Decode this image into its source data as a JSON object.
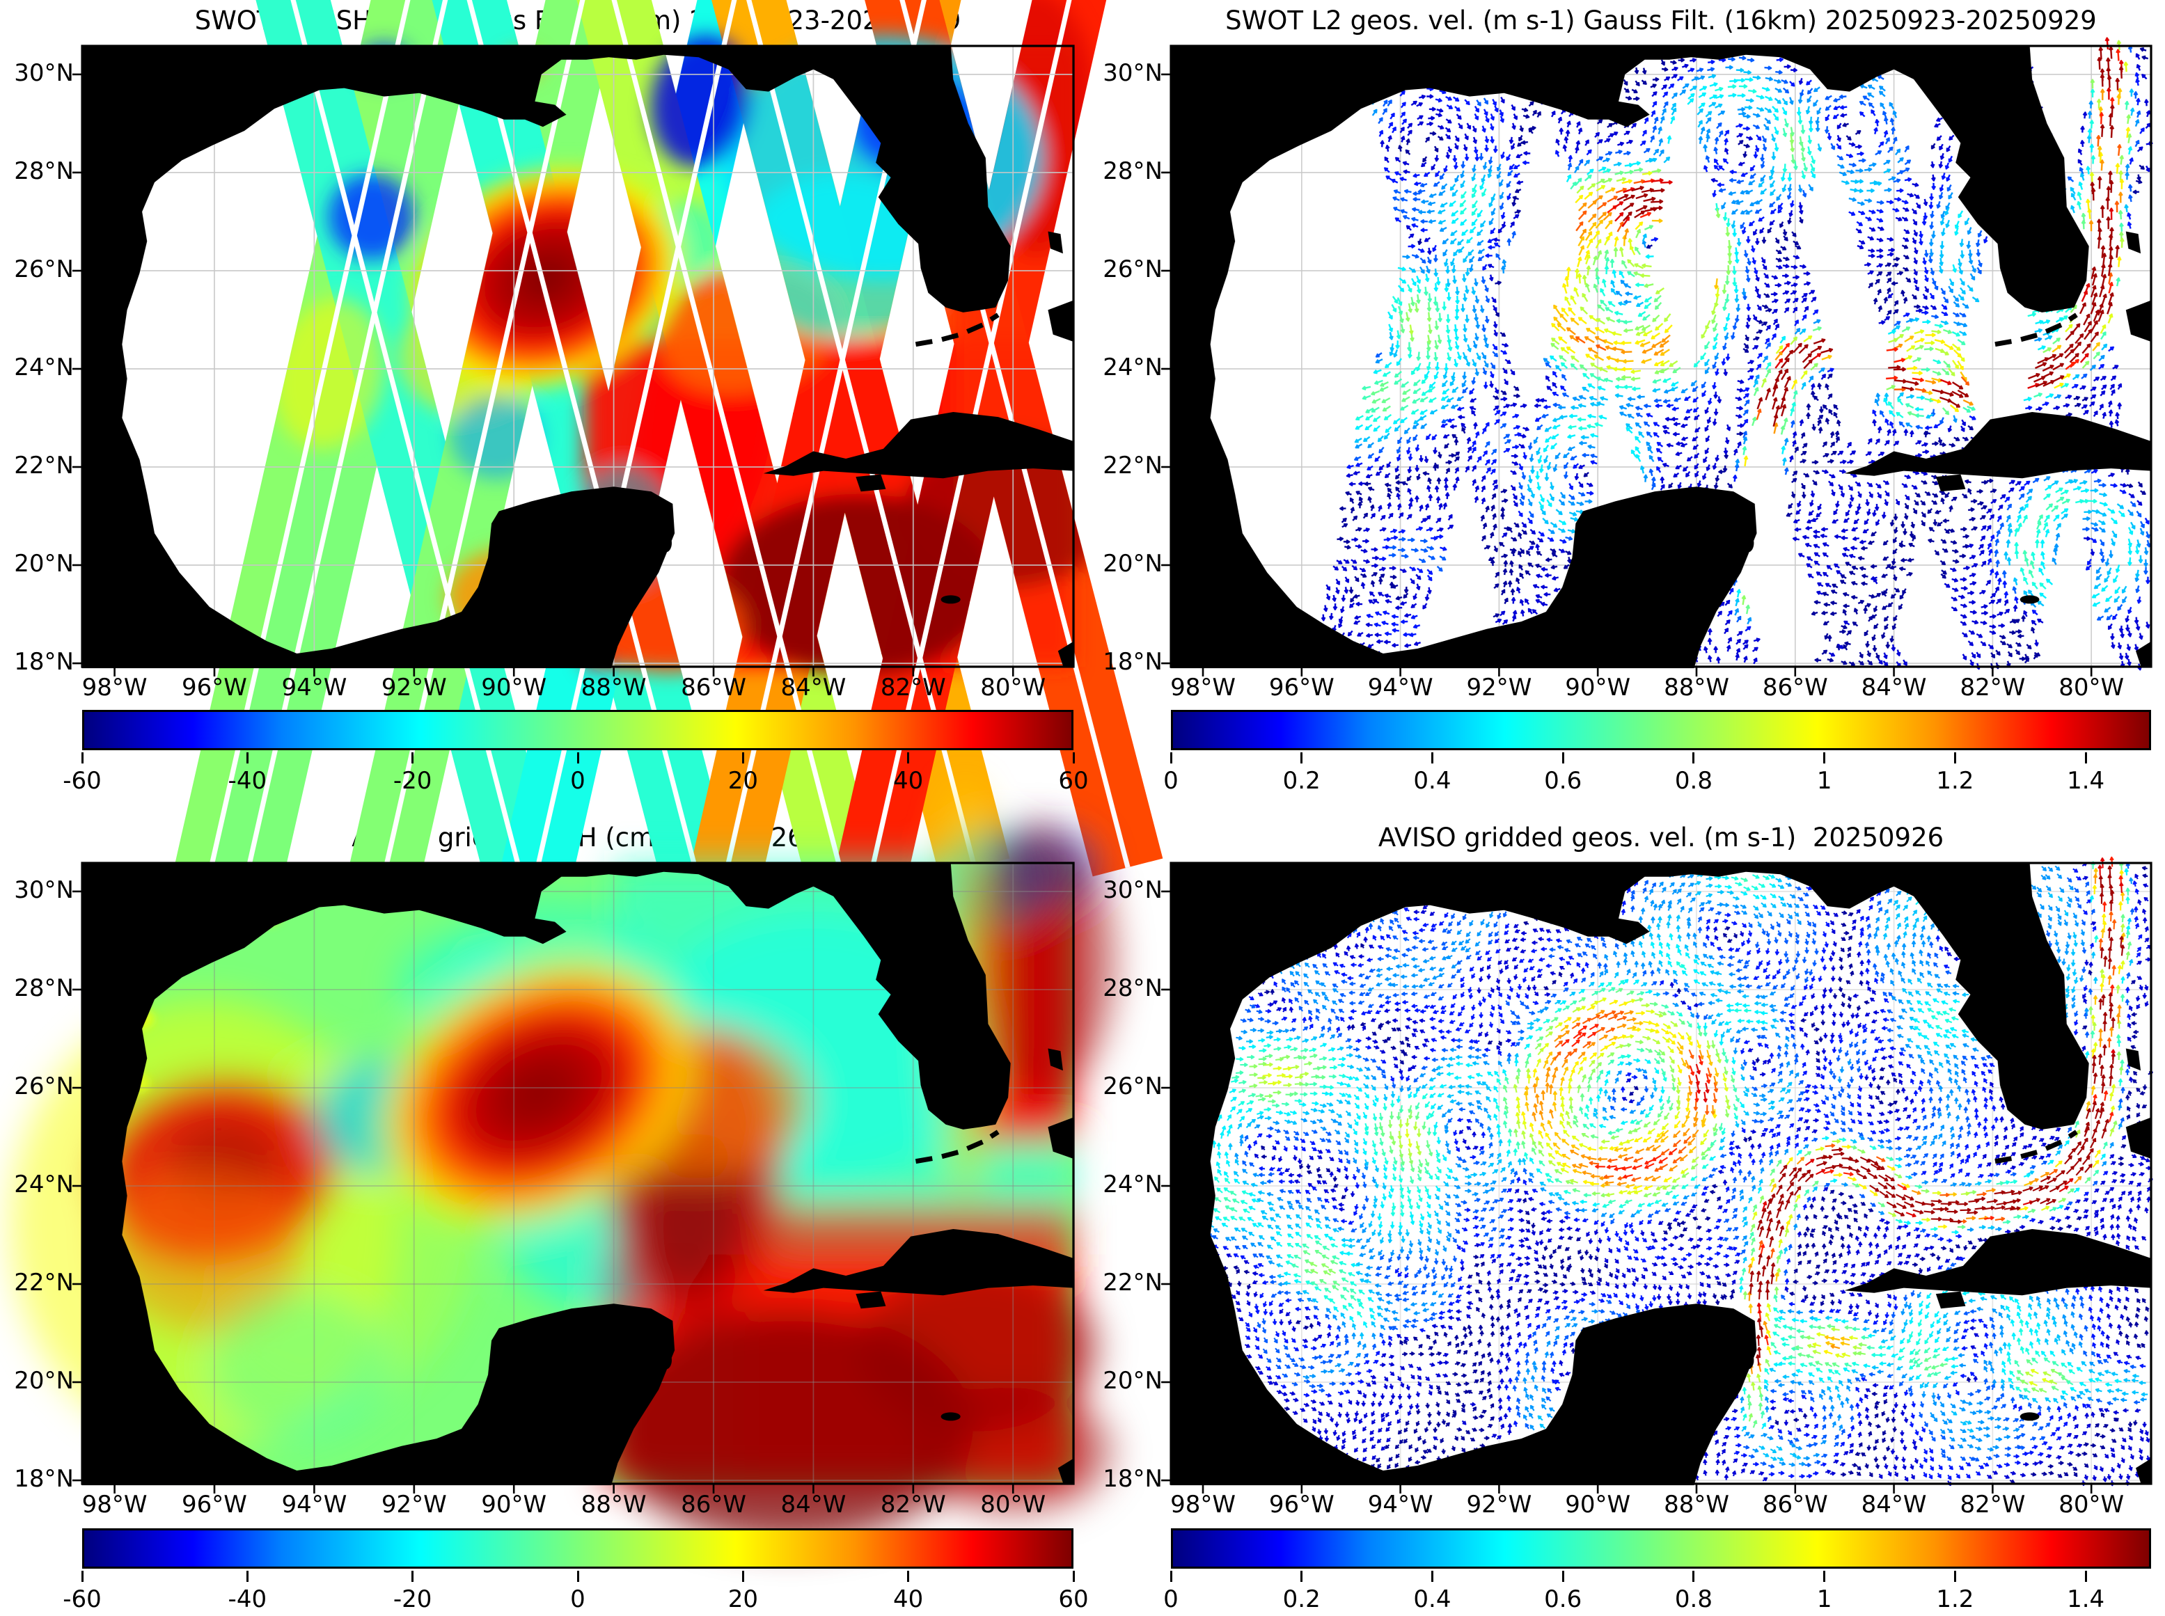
{
  "figure": {
    "panels": [
      {
        "id": "swot-ssh",
        "title": "SWOT L2 SSH (cm) Gauss Filt. (16km) 20250923-20250929"
      },
      {
        "id": "swot-vel",
        "title": "SWOT L2 geos. vel. (m s-1) Gauss Filt. (16km) 20250923-20250929"
      },
      {
        "id": "aviso-ssh",
        "title": "AVISO gridded SSH (cm) 20250926"
      },
      {
        "id": "aviso-vel",
        "title": "AVISO gridded geos. vel. (m s-1)  20250926"
      }
    ]
  },
  "axes": {
    "lat_tick_labels": [
      "30°N",
      "28°N",
      "26°N",
      "24°N",
      "22°N",
      "20°N",
      "18°N"
    ],
    "lat_tick_values": [
      30,
      28,
      26,
      24,
      22,
      20,
      18
    ],
    "lon_tick_labels": [
      "98°W",
      "96°W",
      "94°W",
      "92°W",
      "90°W",
      "88°W",
      "86°W",
      "84°W",
      "82°W",
      "80°W"
    ],
    "lon_tick_values": [
      -98,
      -96,
      -94,
      -92,
      -90,
      -88,
      -86,
      -84,
      -82,
      -80
    ],
    "lon_range": [
      -98.65,
      -78.79
    ],
    "lat_range": [
      17.93,
      30.58
    ]
  },
  "colorbars": {
    "ssh": {
      "tick_labels": [
        "-60",
        "-40",
        "-20",
        "0",
        "20",
        "40",
        "60"
      ],
      "tick_values": [
        -60,
        -40,
        -20,
        0,
        20,
        40,
        60
      ],
      "min": -60,
      "max": 60,
      "units": "cm"
    },
    "vel": {
      "tick_labels": [
        "0",
        "0.2",
        "0.4",
        "0.6",
        "0.8",
        "1",
        "1.2",
        "1.4"
      ],
      "tick_values": [
        0,
        0.2,
        0.4,
        0.6,
        0.8,
        1,
        1.2,
        1.4
      ],
      "min": 0,
      "max": 1.5,
      "units": "m s-1"
    }
  },
  "colors": {
    "land": "#000000",
    "ocean_nodata": "#ffffff",
    "grid": "#c7c7c7",
    "jet_stops": [
      [
        0,
        "#00007F"
      ],
      [
        0.11,
        "#0000FF"
      ],
      [
        0.2,
        "#0080FF"
      ],
      [
        0.34,
        "#00FFFF"
      ],
      [
        0.5,
        "#7CFF79"
      ],
      [
        0.66,
        "#FFFF00"
      ],
      [
        0.78,
        "#FF9400"
      ],
      [
        0.9,
        "#FF0000"
      ],
      [
        1,
        "#7F0000"
      ]
    ]
  },
  "chart_data": [
    {
      "panel": "top-left",
      "type": "heatmap",
      "subtype": "swot-swath-ssh",
      "title": "SWOT L2 SSH (cm) Gauss Filt. (16km) 20250923-20250929",
      "clim": [
        -60,
        60
      ],
      "units": "cm",
      "colormap": "jet",
      "swath_format": "{lon24: center longitude at 24N, tilt: deg from vertical (+=top leans east), width/gap in deg, val: background SSH cm}",
      "swaths": [
        {
          "lon24": -93.8,
          "tilt": 12.7,
          "width": 1.45,
          "gap": 0.1,
          "val": 2
        },
        {
          "lon24": -93.05,
          "tilt": 12.7,
          "width": 1.45,
          "gap": 0.1,
          "val": 0
        },
        {
          "lon24": -92.5,
          "tilt": -14.5,
          "width": 1.45,
          "gap": 0.1,
          "val": -12
        },
        {
          "lon24": -90.3,
          "tilt": 12.7,
          "width": 1.45,
          "gap": 0.1,
          "val": 1
        },
        {
          "lon24": -88.97,
          "tilt": -14.5,
          "width": 1.45,
          "gap": 0.1,
          "val": -13
        },
        {
          "lon24": -87.26,
          "tilt": 12.7,
          "width": 1.45,
          "gap": 0.1,
          "val": -16
        },
        {
          "lon24": -86.07,
          "tilt": -14.5,
          "width": 1.45,
          "gap": 0.1,
          "val": 9
        },
        {
          "lon24": -83.46,
          "tilt": 12.7,
          "width": 1.45,
          "gap": 0.1,
          "val": 33
        },
        {
          "lon24": -83.37,
          "tilt": -14.5,
          "width": 1.45,
          "gap": 0.1,
          "val": 30
        },
        {
          "lon24": -80.55,
          "tilt": 12.7,
          "width": 1.45,
          "gap": 0.1,
          "val": 45
        },
        {
          "lon24": -80.3,
          "tilt": -14.5,
          "width": 1.45,
          "gap": 0.1,
          "val": 41
        }
      ],
      "eddy": {
        "name": "warm-core-eddy",
        "lon": -89.35,
        "lat": 25.85,
        "rx": 2.9,
        "ry": 2.3,
        "rot": -20,
        "core_cm": 62,
        "edge_cm": 20
      },
      "rect_format": "[lon_min,lon_max,lat_min,lat_max,value_cm,opacity]",
      "rects": [
        [
          -88.6,
          -78.79,
          17.93,
          24.6,
          47,
          0.95
        ],
        [
          -81.2,
          -78.79,
          17.93,
          30.58,
          44,
          0.85
        ]
      ],
      "blob_format": "[lon,lat,rx_deg,ry_deg,rot_deg,value_cm,opacity]",
      "blobs": [
        [
          -83.1,
          19.6,
          2.8,
          1.85,
          0,
          60,
          0.85
        ],
        [
          -80.1,
          21.1,
          2.1,
          1.55,
          0,
          58,
          0.75
        ],
        [
          -79.55,
          29.0,
          1.25,
          2.7,
          0,
          52,
          0.6
        ],
        [
          -86.15,
          23.0,
          1.35,
          3.0,
          8,
          48,
          0.8
        ],
        [
          -85.3,
          24.75,
          1.8,
          1.2,
          -15,
          36,
          0.7
        ],
        [
          -90.0,
          19.35,
          1.35,
          1.0,
          0,
          34,
          0.85
        ],
        [
          -86.9,
          18.8,
          1.55,
          1.0,
          0,
          40,
          0.75
        ],
        [
          -82.6,
          28.3,
          3.2,
          2.5,
          0,
          -24,
          0.85
        ],
        [
          -81.95,
          29.0,
          1.35,
          1.05,
          0,
          -43,
          0.8
        ],
        [
          -83.4,
          26.3,
          2.1,
          1.7,
          0,
          -20,
          0.65
        ],
        [
          -86.6,
          26.6,
          0.9,
          0.8,
          0,
          -18,
          0.5
        ],
        [
          -93.7,
          23.9,
          1.1,
          1.55,
          12,
          20,
          0.55
        ],
        [
          -90.95,
          24.25,
          1.35,
          1.2,
          0,
          22,
          0.6
        ],
        [
          -90.6,
          25.3,
          1.0,
          1.25,
          0,
          26,
          0.5
        ],
        [
          -92.85,
          27.1,
          0.87,
          0.87,
          0,
          -43,
          0.8
        ],
        [
          -86.25,
          29.45,
          1.0,
          1.35,
          10,
          -50,
          0.85
        ],
        [
          -90.35,
          22.6,
          0.93,
          0.85,
          0,
          -33,
          0.55
        ],
        [
          -88.55,
          27.35,
          0.7,
          0.63,
          0,
          -33,
          0.55
        ],
        [
          -87.8,
          20.8,
          1.0,
          1.25,
          0,
          -22,
          0.45
        ],
        [
          -92.6,
          30.25,
          0.55,
          0.4,
          0,
          -43,
          0.7
        ],
        [
          -89.85,
          30.2,
          0.4,
          0.28,
          0,
          34,
          0.8
        ]
      ]
    },
    {
      "panel": "top-right",
      "type": "quiver",
      "subtype": "swot-swath-velocity",
      "title": "SWOT L2 geos. vel. (m s-1) Gauss Filt. (16km) 20250923-20250929",
      "clim": [
        0,
        1.5
      ],
      "units": "m s-1",
      "colormap": "jet",
      "coverage": "swath-bands-only",
      "background_speed_range": [
        0.05,
        0.3
      ],
      "eddy_format": "[lon,lat,radius_deg,peak_speed_ms,rotation(1=cw,-1=ccw)]",
      "eddies": [
        [
          -89.45,
          25.85,
          1.5,
          1.15,
          1
        ],
        [
          -95.7,
          24.5,
          1.7,
          0.45,
          1
        ],
        [
          -92.6,
          25.3,
          1.0,
          0.4,
          -1
        ],
        [
          -88.6,
          26.8,
          0.8,
          1.1,
          1
        ],
        [
          -83.4,
          23.9,
          0.7,
          1.05,
          1
        ],
        [
          -93.6,
          24.8,
          1.3,
          0.45,
          1
        ],
        [
          -90.2,
          21.8,
          1.0,
          0.5,
          -1
        ],
        [
          -87.3,
          28.6,
          1.1,
          0.45,
          1
        ],
        [
          -81.5,
          26.5,
          1.3,
          0.5,
          -1
        ],
        [
          -80.3,
          20.3,
          1.0,
          0.55,
          1
        ],
        [
          -84.9,
          28.8,
          1.0,
          0.4,
          -1
        ]
      ],
      "jets": [
        {
          "name": "loop-current-gulf-stream",
          "speed": 1.25,
          "width_deg": 0.35,
          "path": [
            [
              -86.85,
              19.2
            ],
            [
              -86.8,
              20.6
            ],
            [
              -86.7,
              22.0
            ],
            [
              -86.5,
              23.2
            ],
            [
              -86.1,
              24.1
            ],
            [
              -85.3,
              24.55
            ],
            [
              -84.5,
              24.3
            ],
            [
              -83.9,
              23.7
            ],
            [
              -83.0,
              23.5
            ],
            [
              -82.0,
              23.6
            ],
            [
              -81.0,
              23.85
            ],
            [
              -80.3,
              24.4
            ],
            [
              -79.9,
              25.2
            ],
            [
              -79.75,
              26.3
            ],
            [
              -79.7,
              27.5
            ],
            [
              -79.6,
              28.7
            ],
            [
              -79.65,
              30.0
            ],
            [
              -79.7,
              30.58
            ]
          ]
        }
      ]
    },
    {
      "panel": "bottom-left",
      "type": "heatmap",
      "subtype": "aviso-gridded-ssh",
      "title": "AVISO gridded SSH (cm) 20250926",
      "clim": [
        -60,
        60
      ],
      "units": "cm",
      "colormap": "jet",
      "base_cm": 0,
      "eddy": {
        "name": "warm-core-eddy",
        "lon": -89.5,
        "lat": 25.9,
        "rx": 3.5,
        "ry": 2.6,
        "rot": -28,
        "core_cm": 62,
        "edge_cm": 18
      },
      "rect_format": "[lon_min,lon_max,lat_min,lat_max,value_cm,opacity]",
      "rects": [
        [
          -88.0,
          -78.79,
          22.5,
          30.58,
          -12,
          0.7
        ],
        [
          -88.2,
          -78.79,
          17.93,
          22.6,
          47,
          0.92
        ],
        [
          -85.5,
          -78.79,
          17.93,
          23.6,
          45,
          0.7
        ],
        [
          -80.75,
          -78.79,
          24.9,
          30.58,
          48,
          0.92
        ]
      ],
      "blob_format": "[lon,lat,rx_deg,ry_deg,rot_deg,value_cm,opacity]",
      "blobs": [
        [
          -96.2,
          23.2,
          3.9,
          4.6,
          0,
          18,
          0.5
        ],
        [
          -93.6,
          23.2,
          2.8,
          3.6,
          0,
          12,
          0.35
        ],
        [
          -95.95,
          24.3,
          2.4,
          1.9,
          -10,
          50,
          0.85
        ],
        [
          -95.8,
          24.45,
          1.1,
          0.85,
          0,
          57,
          0.6
        ],
        [
          -96.2,
          22.7,
          2.0,
          1.7,
          0,
          36,
          0.5
        ],
        [
          -92.6,
          25.4,
          1.4,
          1.2,
          0,
          -26,
          0.7
        ],
        [
          -91.0,
          28.1,
          1.3,
          1.0,
          0,
          -18,
          0.45
        ],
        [
          -88.1,
          23.1,
          2.1,
          1.7,
          0,
          -20,
          0.55
        ],
        [
          -84.0,
          26.8,
          3.6,
          2.8,
          0,
          -19,
          0.45
        ],
        [
          -89.2,
          28.3,
          2.1,
          1.55,
          0,
          -17,
          0.4
        ],
        [
          -80.35,
          30.25,
          1.2,
          1.0,
          0,
          -26,
          0.85
        ],
        [
          -79.3,
          30.5,
          1.0,
          0.8,
          0,
          -38,
          0.7
        ],
        [
          -86.35,
          24.2,
          1.7,
          3.0,
          5,
          52,
          0.85
        ],
        [
          -86.35,
          23.4,
          1.0,
          1.7,
          5,
          60,
          0.6
        ],
        [
          -86.35,
          25.7,
          2.25,
          1.55,
          0,
          36,
          0.65
        ],
        [
          -84.5,
          19.1,
          3.7,
          2.4,
          0,
          61,
          0.75
        ],
        [
          -80.7,
          20.7,
          2.4,
          1.7,
          0,
          59,
          0.6
        ],
        [
          -80.0,
          18.6,
          2.0,
          1.3,
          0,
          58,
          0.5
        ],
        [
          -79.5,
          28.6,
          1.55,
          2.8,
          0,
          57,
          0.55
        ],
        [
          -80.95,
          28.0,
          0.63,
          4.2,
          0,
          24,
          0.5
        ],
        [
          -94.3,
          20.3,
          1.8,
          1.55,
          0,
          -8,
          0.4
        ]
      ],
      "coastal_dots": [
        [
          -97.5,
          27.4,
          0.3,
          0.22,
          0,
          15,
          0.9
        ],
        [
          -97.55,
          26.1,
          0.25,
          0.2,
          0,
          15,
          0.9
        ],
        [
          -94.9,
          29.5,
          0.22,
          0.17,
          0,
          15,
          0.9
        ]
      ]
    },
    {
      "panel": "bottom-right",
      "type": "quiver",
      "subtype": "aviso-gridded-velocity",
      "title": "AVISO gridded geos. vel. (m s-1)  20250926",
      "clim": [
        0,
        1.5
      ],
      "units": "m s-1",
      "colormap": "jet",
      "coverage": "full-ocean",
      "background_speed_range": [
        0.05,
        0.3
      ],
      "eddy_format": "[lon,lat,radius_deg,peak_speed_ms,rotation(1=cw,-1=ccw)]",
      "eddies": [
        [
          -89.45,
          25.85,
          1.5,
          1.15,
          1
        ],
        [
          -95.7,
          24.5,
          1.7,
          0.5,
          1
        ],
        [
          -92.6,
          25.3,
          1.0,
          0.35,
          -1
        ],
        [
          -94.2,
          22.5,
          1.2,
          0.3,
          1
        ],
        [
          -90.5,
          27.8,
          1.0,
          0.3,
          -1
        ],
        [
          -87.0,
          26.5,
          0.9,
          0.35,
          -1
        ],
        [
          -84.0,
          25.8,
          1.1,
          0.3,
          -1
        ],
        [
          -82.5,
          21.0,
          1.0,
          0.35,
          -1
        ],
        [
          -90.0,
          20.0,
          1.2,
          0.3,
          1
        ],
        [
          -96.5,
          27.5,
          1.1,
          0.3,
          -1
        ],
        [
          -83.0,
          28.8,
          1.2,
          0.3,
          1
        ],
        [
          -86.0,
          19.5,
          0.9,
          0.35,
          -1
        ]
      ],
      "jets": [
        {
          "name": "loop-current-gulf-stream",
          "speed": 1.3,
          "width_deg": 0.33,
          "path": [
            [
              -86.85,
              19.2
            ],
            [
              -86.8,
              20.6
            ],
            [
              -86.7,
              22.0
            ],
            [
              -86.5,
              23.2
            ],
            [
              -86.1,
              24.1
            ],
            [
              -85.3,
              24.55
            ],
            [
              -84.5,
              24.3
            ],
            [
              -83.9,
              23.7
            ],
            [
              -83.0,
              23.5
            ],
            [
              -82.0,
              23.6
            ],
            [
              -81.0,
              23.85
            ],
            [
              -80.3,
              24.4
            ],
            [
              -79.9,
              25.2
            ],
            [
              -79.75,
              26.3
            ],
            [
              -79.7,
              27.5
            ],
            [
              -79.6,
              28.7
            ],
            [
              -79.65,
              30.0
            ],
            [
              -79.7,
              30.58
            ]
          ]
        },
        {
          "name": "caribbean-inflow",
          "speed": 0.5,
          "width_deg": 0.5,
          "path": [
            [
              -78.9,
              19.9
            ],
            [
              -81.0,
              20.0
            ],
            [
              -83.0,
              20.3
            ],
            [
              -85.0,
              20.8
            ],
            [
              -86.3,
              21.2
            ]
          ]
        }
      ]
    }
  ]
}
